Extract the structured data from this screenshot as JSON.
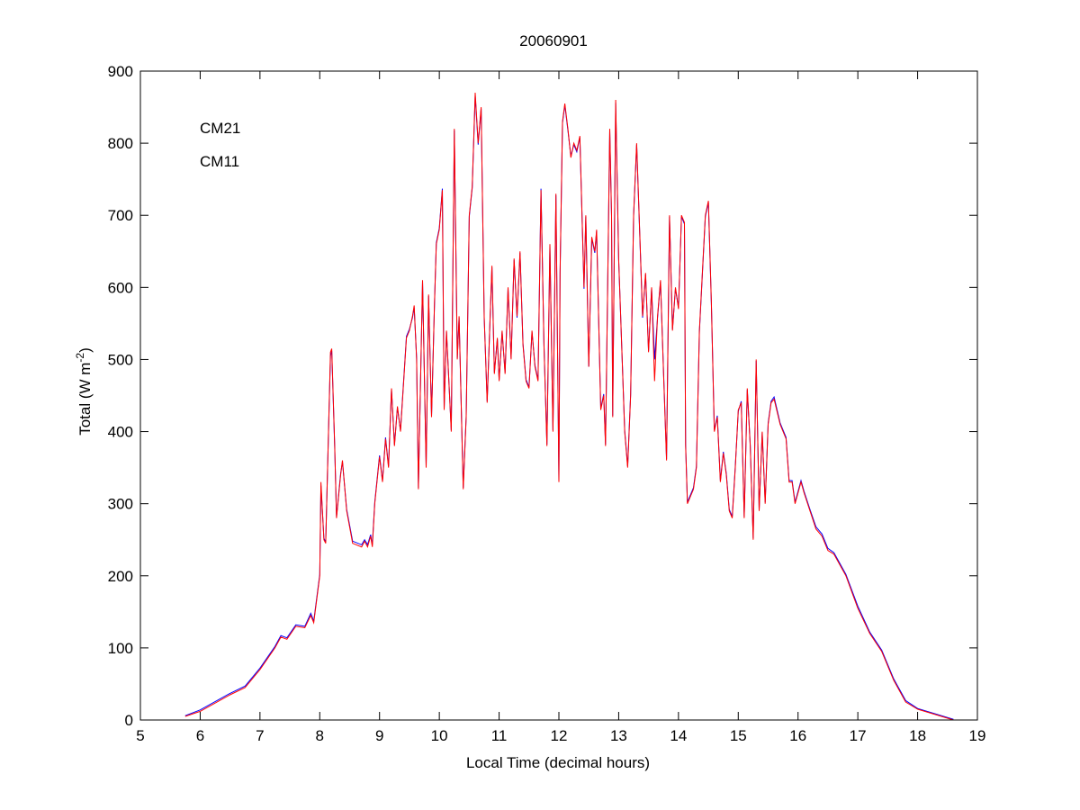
{
  "chart_data": {
    "type": "line",
    "title": "20060901",
    "xlabel": "Local Time (decimal hours)",
    "ylabel": "Total (W m",
    "ylabel_sup": "-2",
    "ylabel_end": ")",
    "xlim": [
      5,
      19
    ],
    "ylim": [
      0,
      900
    ],
    "xticks": [
      5,
      6,
      7,
      8,
      9,
      10,
      11,
      12,
      13,
      14,
      15,
      16,
      17,
      18,
      19
    ],
    "yticks": [
      0,
      100,
      200,
      300,
      400,
      500,
      600,
      700,
      800,
      900
    ],
    "grid": false,
    "legend_position": "top-left",
    "x": [
      5.75,
      6.0,
      6.5,
      6.75,
      7.0,
      7.25,
      7.35,
      7.45,
      7.6,
      7.75,
      7.85,
      7.9,
      8.0,
      8.02,
      8.07,
      8.1,
      8.18,
      8.2,
      8.25,
      8.28,
      8.35,
      8.38,
      8.45,
      8.55,
      8.7,
      8.75,
      8.8,
      8.85,
      8.88,
      8.92,
      9.0,
      9.05,
      9.1,
      9.15,
      9.2,
      9.25,
      9.3,
      9.35,
      9.45,
      9.5,
      9.55,
      9.58,
      9.62,
      9.65,
      9.72,
      9.78,
      9.82,
      9.87,
      9.92,
      9.95,
      10.0,
      10.05,
      10.08,
      10.12,
      10.2,
      10.25,
      10.3,
      10.33,
      10.4,
      10.45,
      10.5,
      10.55,
      10.6,
      10.65,
      10.7,
      10.75,
      10.8,
      10.85,
      10.88,
      10.92,
      10.97,
      11.0,
      11.05,
      11.1,
      11.15,
      11.2,
      11.25,
      11.3,
      11.35,
      11.4,
      11.45,
      11.5,
      11.55,
      11.6,
      11.65,
      11.7,
      11.75,
      11.8,
      11.85,
      11.9,
      11.95,
      12.0,
      12.02,
      12.06,
      12.1,
      12.15,
      12.2,
      12.25,
      12.3,
      12.35,
      12.42,
      12.45,
      12.5,
      12.55,
      12.6,
      12.63,
      12.7,
      12.75,
      12.78,
      12.8,
      12.85,
      12.88,
      12.9,
      12.95,
      13.0,
      13.1,
      13.15,
      13.2,
      13.25,
      13.3,
      13.35,
      13.4,
      13.45,
      13.5,
      13.55,
      13.6,
      13.65,
      13.7,
      13.75,
      13.8,
      13.85,
      13.9,
      13.95,
      14.0,
      14.05,
      14.1,
      14.12,
      14.15,
      14.25,
      14.3,
      14.35,
      14.45,
      14.5,
      14.55,
      14.6,
      14.65,
      14.7,
      14.75,
      14.8,
      14.85,
      14.9,
      14.95,
      15.0,
      15.05,
      15.1,
      15.15,
      15.2,
      15.25,
      15.3,
      15.35,
      15.4,
      15.45,
      15.5,
      15.55,
      15.6,
      15.7,
      15.8,
      15.85,
      15.9,
      15.95,
      16.05,
      16.1,
      16.2,
      16.3,
      16.4,
      16.5,
      16.6,
      16.8,
      17.0,
      17.2,
      17.4,
      17.6,
      17.8,
      18.0,
      18.2,
      18.4,
      18.6
    ],
    "series": [
      {
        "name": "CM21",
        "color": "#0000ff",
        "values": [
          6,
          14,
          37,
          47,
          72,
          102,
          117,
          114,
          132,
          130,
          148,
          137,
          202,
          325,
          252,
          247,
          505,
          512,
          378,
          282,
          342,
          358,
          292,
          248,
          243,
          250,
          243,
          257,
          243,
          302,
          367,
          332,
          392,
          352,
          458,
          382,
          433,
          402,
          532,
          542,
          558,
          572,
          502,
          322,
          608,
          352,
          588,
          422,
          578,
          662,
          682,
          737,
          432,
          538,
          402,
          818,
          502,
          558,
          322,
          422,
          698,
          738,
          866,
          798,
          848,
          558,
          442,
          558,
          628,
          482,
          528,
          472,
          538,
          482,
          598,
          502,
          638,
          558,
          648,
          522,
          472,
          462,
          538,
          492,
          472,
          737,
          522,
          382,
          658,
          402,
          728,
          332,
          618,
          828,
          853,
          818,
          782,
          798,
          788,
          808,
          598,
          698,
          490,
          668,
          648,
          678,
          432,
          452,
          382,
          498,
          818,
          698,
          422,
          856,
          638,
          402,
          352,
          452,
          698,
          798,
          678,
          558,
          618,
          512,
          598,
          500,
          558,
          608,
          482,
          362,
          698,
          542,
          598,
          572,
          698,
          688,
          382,
          302,
          322,
          352,
          538,
          698,
          718,
          578,
          402,
          422,
          332,
          372,
          342,
          292,
          282,
          352,
          428,
          442,
          282,
          458,
          382,
          252,
          498,
          292,
          398,
          302,
          412,
          442,
          448,
          412,
          392,
          332,
          332,
          302,
          332,
          317,
          292,
          268,
          258,
          238,
          232,
          202,
          158,
          122,
          97,
          57,
          27,
          16,
          11,
          6,
          1
        ]
      },
      {
        "name": "CM11",
        "color": "#ff0000",
        "values": [
          5,
          12,
          35,
          45,
          70,
          100,
          115,
          112,
          130,
          128,
          145,
          135,
          200,
          330,
          250,
          245,
          510,
          515,
          380,
          280,
          340,
          360,
          290,
          245,
          240,
          248,
          240,
          255,
          240,
          300,
          365,
          330,
          390,
          350,
          460,
          380,
          435,
          400,
          530,
          540,
          560,
          575,
          500,
          320,
          610,
          350,
          590,
          420,
          580,
          660,
          680,
          735,
          430,
          540,
          400,
          820,
          500,
          560,
          320,
          420,
          700,
          740,
          870,
          800,
          850,
          560,
          440,
          560,
          630,
          480,
          530,
          470,
          540,
          480,
          600,
          500,
          640,
          560,
          650,
          520,
          470,
          460,
          540,
          490,
          470,
          735,
          520,
          380,
          660,
          400,
          730,
          330,
          620,
          830,
          855,
          820,
          780,
          800,
          790,
          810,
          600,
          700,
          490,
          670,
          650,
          680,
          430,
          450,
          380,
          500,
          820,
          700,
          420,
          860,
          640,
          400,
          350,
          450,
          700,
          800,
          680,
          560,
          620,
          510,
          600,
          470,
          560,
          610,
          480,
          360,
          700,
          540,
          600,
          570,
          700,
          690,
          380,
          300,
          320,
          350,
          540,
          700,
          720,
          580,
          400,
          420,
          330,
          370,
          340,
          290,
          280,
          350,
          430,
          440,
          280,
          460,
          380,
          250,
          500,
          290,
          400,
          300,
          410,
          440,
          445,
          410,
          390,
          330,
          330,
          300,
          330,
          315,
          290,
          265,
          255,
          235,
          230,
          200,
          155,
          120,
          95,
          55,
          25,
          15,
          10,
          5,
          0
        ]
      }
    ]
  }
}
